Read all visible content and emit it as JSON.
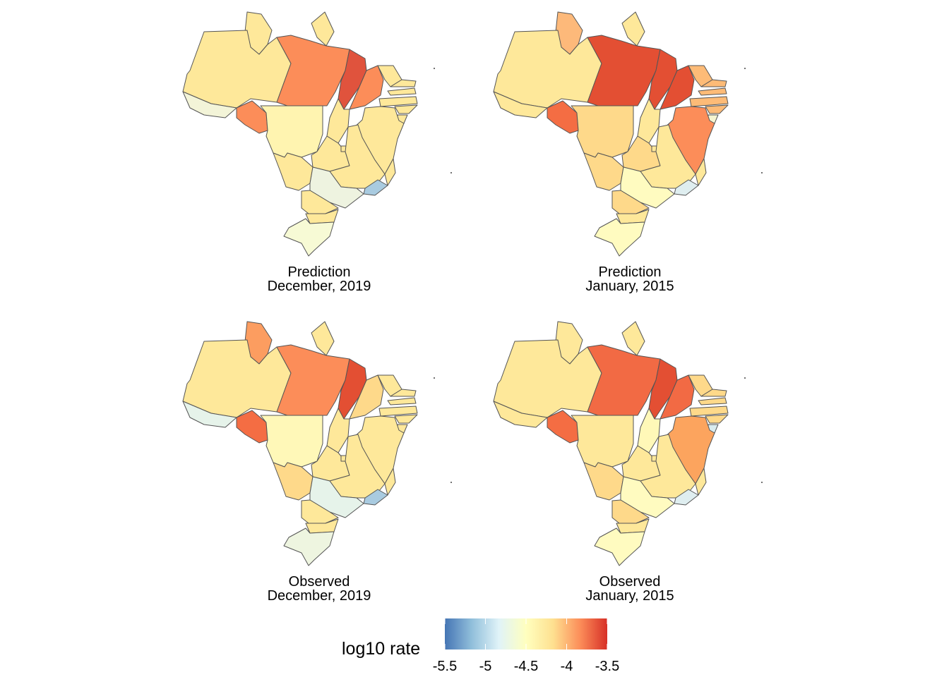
{
  "panels": [
    {
      "id": "pred-2019",
      "line1": "Prediction",
      "line2": "December, 2019",
      "colors": {
        "RR": "#fee89a",
        "AP": "#fee89a",
        "AM": "#fee89a",
        "PA": "#fc8d59",
        "MA": "#e0533d",
        "PI": "#fc8d59",
        "CE": "#fee89a",
        "RN": "#fee89a",
        "PB": "#fee89a",
        "PE": "#fee89a",
        "AL": "#fee89a",
        "SE": "#fee89a",
        "BA": "#fee89a",
        "AC": "#f3f4d8",
        "RO": "#fc8d59",
        "MT": "#fff4b0",
        "TO": "#fee89a",
        "GO": "#fee89a",
        "DF": "#fee89a",
        "MG": "#fee89a",
        "ES": "#fee89a",
        "RJ": "#a9cbe0",
        "MS": "#fee89a",
        "SP": "#eef3e0",
        "PR": "#fee89a",
        "SC": "#fee89a",
        "RS": "#f7fad5"
      }
    },
    {
      "id": "pred-2015",
      "line1": "Prediction",
      "line2": "January, 2015",
      "colors": {
        "RR": "#fdb97a",
        "AP": "#fee89a",
        "AM": "#fee89a",
        "PA": "#e34f33",
        "MA": "#e34f33",
        "PI": "#e34f33",
        "CE": "#fdbb77",
        "RN": "#fdbb77",
        "PB": "#fdbb77",
        "PE": "#fdbb77",
        "AL": "#fdbb77",
        "SE": "#f6f5d0",
        "BA": "#fc8d59",
        "AC": "#fee89a",
        "RO": "#f46d43",
        "MT": "#fed98a",
        "TO": "#fee89a",
        "GO": "#fed98a",
        "DF": "#fee89a",
        "MG": "#fee89a",
        "ES": "#fee89a",
        "RJ": "#dfeef0",
        "MS": "#fed98a",
        "SP": "#fffbc0",
        "PR": "#fed98a",
        "SC": "#fee89a",
        "RS": "#fffbc0"
      }
    },
    {
      "id": "obs-2019",
      "line1": "Observed",
      "line2": "December, 2019",
      "colors": {
        "RR": "#fc9d60",
        "AP": "#fee89a",
        "AM": "#fee89a",
        "PA": "#fc8d59",
        "MA": "#e34f33",
        "PI": "#fed98a",
        "CE": "#fee89a",
        "RN": "#fee89a",
        "PB": "#fee89a",
        "PE": "#fee89a",
        "AL": "#fee89a",
        "SE": "#fee89a",
        "BA": "#fee89a",
        "AC": "#e6f3ea",
        "RO": "#f46d43",
        "MT": "#fff8b8",
        "TO": "#fee89a",
        "GO": "#fee89a",
        "DF": "#fee89a",
        "MG": "#fee89a",
        "ES": "#fee89a",
        "RJ": "#a9cbe0",
        "MS": "#fed98a",
        "SP": "#e6f3ea",
        "PR": "#fee89a",
        "SC": "#fee89a",
        "RS": "#eef5e0"
      }
    },
    {
      "id": "obs-2015",
      "line1": "Observed",
      "line2": "January, 2015",
      "colors": {
        "RR": "#fee89a",
        "AP": "#fee89a",
        "AM": "#fee89a",
        "PA": "#f26a44",
        "MA": "#e34f33",
        "PI": "#f26a44",
        "CE": "#fed98a",
        "RN": "#fed98a",
        "PB": "#fed98a",
        "PE": "#fed98a",
        "AL": "#fed98a",
        "SE": "#d9ecef",
        "BA": "#fca45e",
        "AC": "#fee89a",
        "RO": "#f46d43",
        "MT": "#fee89a",
        "TO": "#fff8b8",
        "GO": "#fee89a",
        "DF": "#fee89a",
        "MG": "#fee89a",
        "ES": "#fee89a",
        "RJ": "#dfeef0",
        "MS": "#fed98a",
        "SP": "#fffbc0",
        "PR": "#fed98a",
        "SC": "#fee89a",
        "RS": "#fffbc0"
      }
    }
  ],
  "legend": {
    "title": "log10 rate",
    "ticks": [
      "-5.5",
      "-5",
      "-4.5",
      "-4",
      "-3.5"
    ],
    "tick_values": [
      -5.5,
      -5,
      -4.5,
      -4,
      -3.5
    ],
    "range": [
      -5.5,
      -3.5
    ],
    "gradient": [
      "#4575b4",
      "#91bfdb",
      "#e0f3f8",
      "#ffffbf",
      "#fee090",
      "#fc8d59",
      "#d73027"
    ]
  }
}
